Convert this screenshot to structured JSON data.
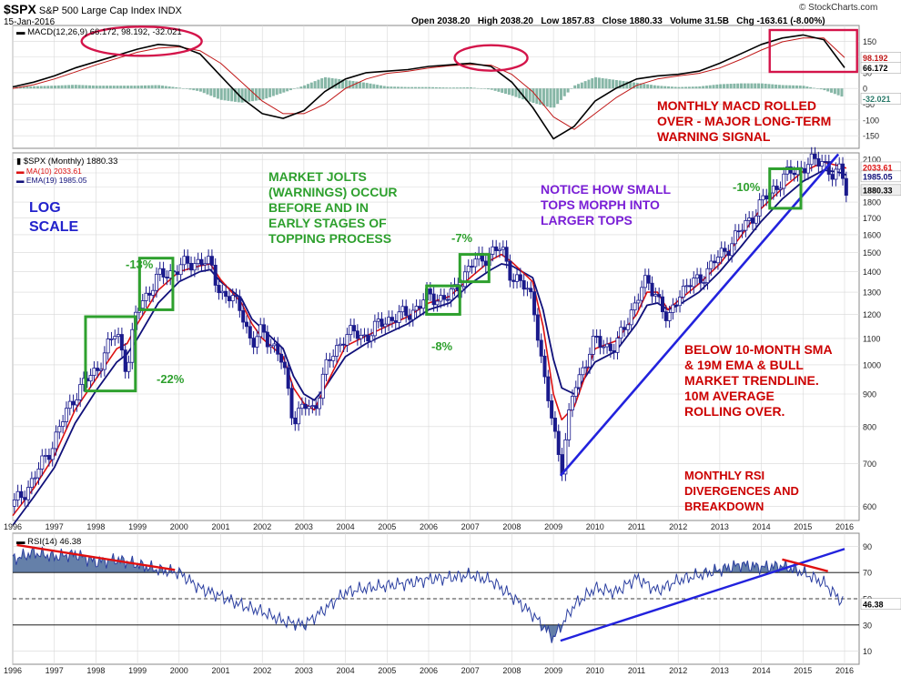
{
  "colors": {
    "price": "#1a1a8c",
    "sma": "#dd1111",
    "ema": "#10107a",
    "trend": "#2222dd",
    "box": "#2ea02e",
    "circle": "#d4144a",
    "annot_red": "#cc0000",
    "annot_green": "#2ea02e",
    "annot_blue": "#2222cc",
    "annot_purple": "#7a1fd6",
    "macd_line": "#000000",
    "signal_line": "#c01818",
    "histogram": "#5f9f8a",
    "rsi_line": "#2a3ea0",
    "rsi_fill": "#4a6a9a",
    "grid": "#d8d8d8"
  },
  "header": {
    "symbol": "$SPX",
    "name": "S&P 500 Large Cap Index",
    "exchange": "INDX",
    "date": "15-Jan-2016",
    "open": "Open 2038.20",
    "high": "High 2038.20",
    "low": "Low 1857.83",
    "close": "Close 1880.33",
    "volume": "Volume 31.5B",
    "change": "Chg -163.61 (-8.00%)",
    "copyright": "© StockCharts.com"
  },
  "chart_data": [
    {
      "type": "line",
      "panel": "MACD",
      "title": "MACD(12,26,9) 66.172, 98.192, -32.021",
      "ylim": [
        -190,
        200
      ],
      "y_ticks": [
        150,
        100,
        50,
        0,
        -50,
        -100,
        -150
      ],
      "last_value_flags": [
        "98.192",
        "66.172",
        "-32.021"
      ],
      "x": [
        1996,
        1996.5,
        1997,
        1997.5,
        1998,
        1998.5,
        1999,
        1999.5,
        2000,
        2000.5,
        2001,
        2001.5,
        2002,
        2002.5,
        2003,
        2003.5,
        2004,
        2004.5,
        2005,
        2005.5,
        2006,
        2006.5,
        2007,
        2007.5,
        2008,
        2008.5,
        2009,
        2009.5,
        2010,
        2010.5,
        2011,
        2011.5,
        2012,
        2012.5,
        2013,
        2013.5,
        2014,
        2014.5,
        2015,
        2015.5,
        2016
      ],
      "series": [
        {
          "name": "MACD",
          "values": [
            5,
            20,
            40,
            65,
            85,
            105,
            125,
            140,
            135,
            110,
            40,
            -30,
            -80,
            -95,
            -70,
            -10,
            30,
            50,
            55,
            60,
            70,
            75,
            80,
            70,
            20,
            -60,
            -160,
            -120,
            -40,
            0,
            30,
            40,
            45,
            55,
            80,
            110,
            140,
            160,
            170,
            155,
            66
          ]
        },
        {
          "name": "Signal",
          "values": [
            0,
            12,
            30,
            52,
            75,
            95,
            115,
            128,
            132,
            120,
            80,
            20,
            -40,
            -80,
            -80,
            -50,
            0,
            30,
            48,
            55,
            65,
            72,
            76,
            74,
            45,
            -10,
            -90,
            -130,
            -80,
            -30,
            10,
            30,
            40,
            48,
            65,
            92,
            122,
            148,
            160,
            160,
            98
          ]
        }
      ],
      "histogram_last": -32.021
    },
    {
      "type": "line",
      "panel": "Price",
      "title": "$SPX (Monthly) 1880.33",
      "legend": [
        "MA(10) 2033.61",
        "EMA(19) 1985.05"
      ],
      "scale": "log",
      "ylim": [
        570,
        2150
      ],
      "y_ticks": [
        2100,
        2000,
        1900,
        1800,
        1700,
        1600,
        1500,
        1400,
        1300,
        1200,
        1100,
        1000,
        900,
        800,
        700,
        600
      ],
      "last_value_flags": [
        "2033.61",
        "1985.05",
        "1880.33"
      ],
      "x_ticks": [
        "1996",
        "1997",
        "1998",
        "1999",
        "2000",
        "2001",
        "2002",
        "2003",
        "2004",
        "2005",
        "2006",
        "2007",
        "2008",
        "2009",
        "2010",
        "2011",
        "2012",
        "2013",
        "2014",
        "2015",
        "2016"
      ],
      "x": [
        1996,
        1996.5,
        1997,
        1997.5,
        1998,
        1998.5,
        1998.75,
        1999,
        1999.5,
        2000,
        2000.5,
        2000.75,
        2001,
        2001.5,
        2001.75,
        2002,
        2002.5,
        2002.75,
        2003,
        2003.25,
        2003.5,
        2004,
        2004.5,
        2005,
        2005.5,
        2006,
        2006.5,
        2007,
        2007.5,
        2007.75,
        2008,
        2008.5,
        2008.75,
        2009,
        2009.2,
        2009.5,
        2010,
        2010.5,
        2011,
        2011.25,
        2011.5,
        2011.75,
        2012,
        2012.5,
        2013,
        2013.5,
        2014,
        2014.5,
        2015,
        2015.5,
        2015.75,
        2015.92,
        2016.04
      ],
      "series": [
        {
          "name": "$SPX",
          "values": [
            600,
            660,
            760,
            900,
            980,
            1130,
            980,
            1230,
            1370,
            1420,
            1460,
            1430,
            1300,
            1230,
            1060,
            1140,
            1000,
            820,
            860,
            850,
            980,
            1120,
            1110,
            1180,
            1200,
            1280,
            1270,
            1430,
            1500,
            1520,
            1380,
            1280,
            960,
            800,
            690,
            920,
            1090,
            1060,
            1270,
            1350,
            1290,
            1150,
            1300,
            1360,
            1480,
            1620,
            1790,
            1960,
            2050,
            2100,
            1950,
            2040,
            1880
          ]
        },
        {
          "name": "MA(10)",
          "values": [
            580,
            640,
            720,
            850,
            950,
            1060,
            1080,
            1160,
            1310,
            1400,
            1430,
            1440,
            1360,
            1250,
            1160,
            1100,
            1030,
            920,
            870,
            850,
            920,
            1070,
            1110,
            1150,
            1190,
            1250,
            1280,
            1370,
            1460,
            1490,
            1450,
            1350,
            1150,
            900,
            820,
            860,
            1060,
            1090,
            1200,
            1300,
            1300,
            1220,
            1260,
            1340,
            1440,
            1590,
            1760,
            1890,
            2010,
            2080,
            2060,
            2050,
            2034
          ]
        },
        {
          "name": "EMA(19)",
          "values": [
            560,
            620,
            690,
            810,
            910,
            1010,
            1040,
            1100,
            1250,
            1350,
            1400,
            1410,
            1350,
            1270,
            1180,
            1140,
            1060,
            960,
            900,
            880,
            920,
            1030,
            1080,
            1120,
            1160,
            1220,
            1250,
            1340,
            1410,
            1440,
            1430,
            1370,
            1220,
            1020,
            920,
            900,
            1010,
            1050,
            1160,
            1240,
            1250,
            1220,
            1240,
            1300,
            1400,
            1530,
            1680,
            1820,
            1940,
            2020,
            2010,
            2000,
            1985
          ]
        }
      ]
    },
    {
      "type": "line",
      "panel": "RSI",
      "title": "RSI(14) 46.38",
      "ylim": [
        0,
        100
      ],
      "y_ticks": [
        90,
        70,
        50,
        30,
        10
      ],
      "last_value_flags": [
        "46.38"
      ],
      "x_ticks": [
        "1996",
        "1997",
        "1998",
        "1999",
        "2000",
        "2001",
        "2002",
        "2003",
        "2004",
        "2005",
        "2006",
        "2007",
        "2008",
        "2009",
        "2010",
        "2011",
        "2012",
        "2013",
        "2014",
        "2015",
        "2016"
      ],
      "x": [
        1996,
        1996.5,
        1997,
        1997.5,
        1998,
        1998.5,
        1999,
        1999.5,
        2000,
        2000.5,
        2001,
        2001.5,
        2002,
        2002.5,
        2003,
        2003.5,
        2004,
        2004.5,
        2005,
        2005.5,
        2006,
        2006.5,
        2007,
        2007.5,
        2008,
        2008.5,
        2009,
        2009.5,
        2010,
        2010.5,
        2011,
        2011.5,
        2012,
        2012.5,
        2013,
        2013.5,
        2014,
        2014.5,
        2015,
        2015.5,
        2016
      ],
      "series": [
        {
          "name": "RSI(14)",
          "values": [
            80,
            85,
            82,
            84,
            78,
            80,
            76,
            72,
            70,
            58,
            52,
            45,
            40,
            33,
            30,
            42,
            55,
            58,
            60,
            62,
            65,
            66,
            68,
            64,
            52,
            38,
            20,
            45,
            58,
            55,
            66,
            56,
            64,
            68,
            72,
            76,
            74,
            75,
            70,
            62,
            46
          ]
        }
      ]
    }
  ],
  "annotations": {
    "macd_note": "MONTHLY MACD ROLLED\nOVER - MAJOR LONG-TERM\nWARNING SIGNAL",
    "log_scale": "LOG\nSCALE",
    "market_jolts": "MARKET JOLTS\n(WARNINGS) OCCUR\nBEFORE AND IN\nEARLY STAGES OF\nTOPPING PROCESS",
    "small_tops": "NOTICE HOW SMALL\nTOPS MORPH INTO\nLARGER TOPS",
    "below_sma": "BELOW 10-MONTH SMA\n& 19M EMA & BULL\nMARKET TRENDLINE.\n10M AVERAGE\nROLLING OVER.",
    "rsi_note": "MONTHLY RSI\nDIVERGENCES AND\nBREAKDOWN",
    "pct_13": "-13%",
    "pct_22": "-22%",
    "pct_7": "-7%",
    "pct_8": "-8%",
    "pct_10": "-10%"
  }
}
